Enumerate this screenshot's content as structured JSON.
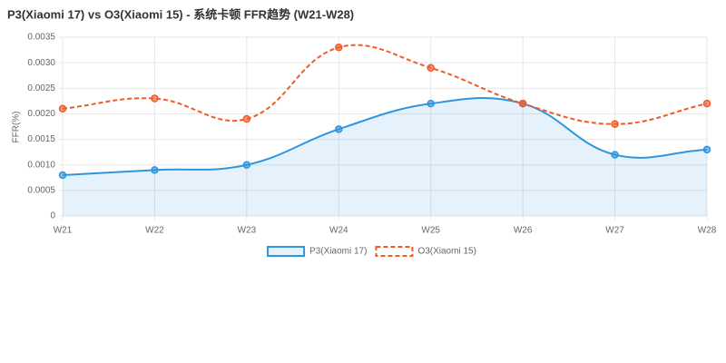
{
  "chart_data": {
    "type": "line",
    "title": "P3(Xiaomi 17) vs O3(Xiaomi 15) - 系统卡顿 FFR趋势 (W21-W28)",
    "ylabel": "FFR(%)",
    "categories": [
      "W21",
      "W22",
      "W23",
      "W24",
      "W25",
      "W26",
      "W27",
      "W28"
    ],
    "series": [
      {
        "name": "P3(Xiaomi 17)",
        "color": "#2f95e0",
        "fill": true,
        "fill_color": "rgba(47,149,224,0.12)",
        "dashed": false,
        "values": [
          0.0008,
          0.0009,
          0.001,
          0.0017,
          0.0022,
          0.0022,
          0.0012,
          0.0013
        ]
      },
      {
        "name": "O3(Xiaomi 15)",
        "color": "#f15a29",
        "fill": false,
        "dashed": true,
        "values": [
          0.0021,
          0.0023,
          0.0019,
          0.0033,
          0.0029,
          0.0022,
          0.0018,
          0.0022
        ]
      }
    ],
    "ylim": [
      0,
      0.0035
    ],
    "yticks": [
      0,
      0.0005,
      {
        "value": 0.001,
        "label": "0.0010"
      },
      0.0015,
      {
        "value": 0.002,
        "label": "0.0020"
      },
      0.0025,
      {
        "value": 0.003,
        "label": "0.0030"
      },
      0.0035
    ],
    "grid": true,
    "legend": "bottom"
  }
}
